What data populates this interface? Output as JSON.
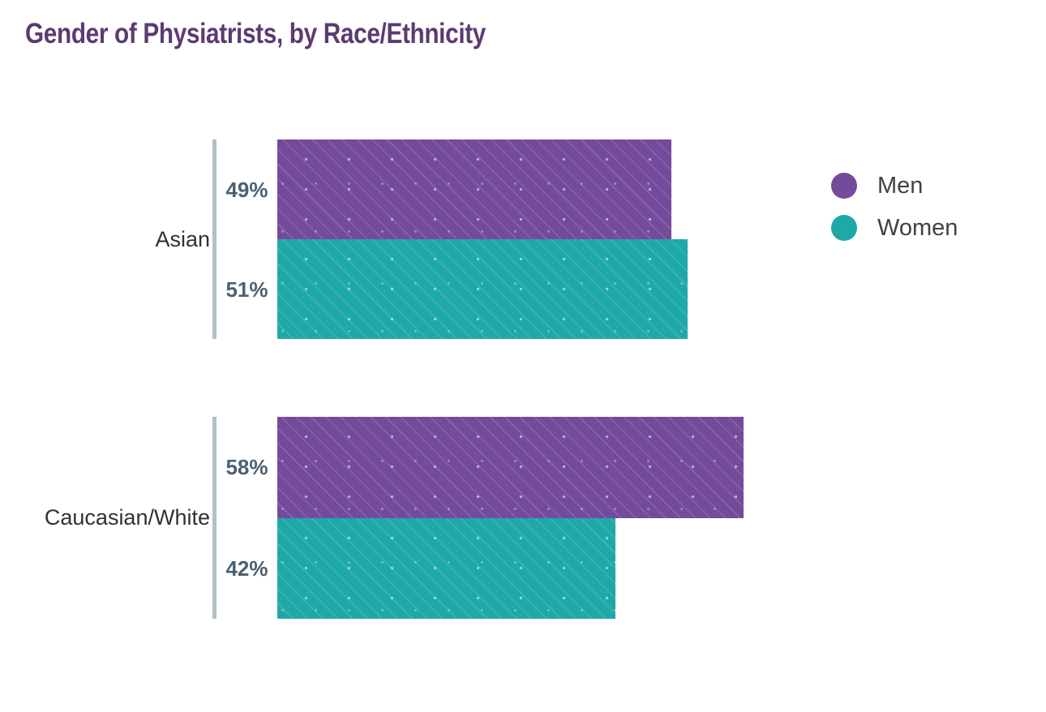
{
  "page": {
    "background": "#ffffff"
  },
  "colors": {
    "title": "#5b3b70",
    "category_label": "#2f3133",
    "value_label": "#4a6173",
    "axis_line": "#b3bfc6",
    "legend_text": "#3e4245"
  },
  "chart_data": {
    "type": "bar",
    "orientation": "horizontal",
    "title": "Gender of Physiatrists, by Race/Ethnicity",
    "categories": [
      "Asian",
      "Caucasian/White"
    ],
    "series": [
      {
        "name": "Men",
        "color": "#744b9b",
        "values": [
          49,
          58
        ],
        "labels": [
          "49%",
          "58%"
        ]
      },
      {
        "name": "Women",
        "color": "#1fa8a8",
        "values": [
          51,
          42
        ],
        "labels": [
          "51%",
          "42%"
        ]
      }
    ],
    "xlim": [
      0,
      100
    ],
    "value_suffix": "%",
    "grid": false,
    "legend_position": "right"
  }
}
